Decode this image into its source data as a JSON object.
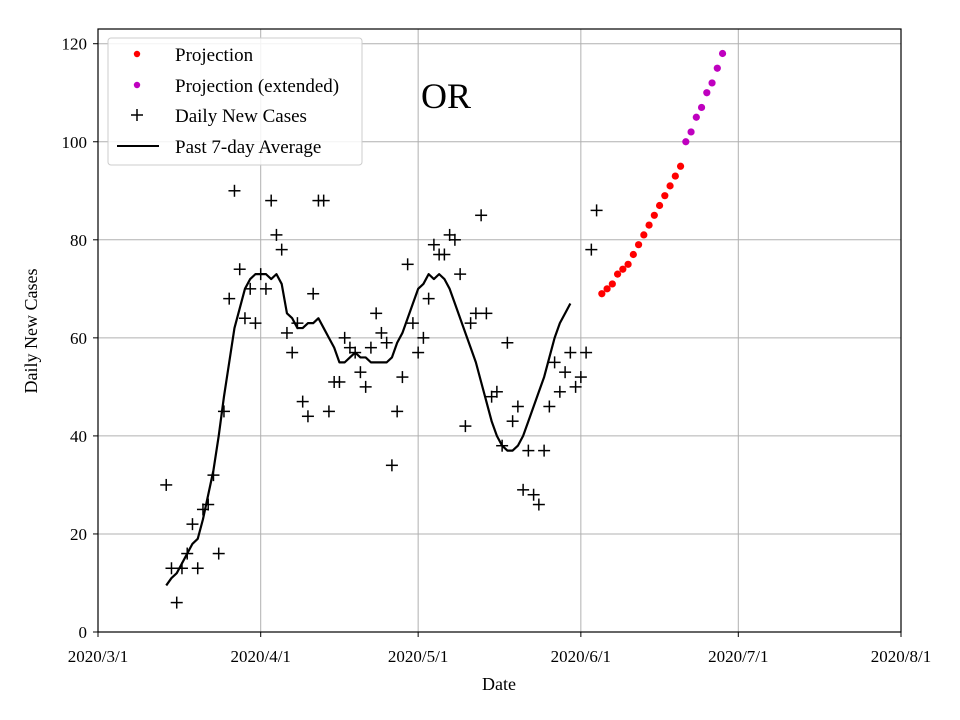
{
  "chart_data": {
    "type": "scatter",
    "title": "OR",
    "xlabel": "Date",
    "ylabel": "Daily New Cases",
    "xlim": [
      "2020-03-01",
      "2020-08-01"
    ],
    "ylim": [
      0,
      123
    ],
    "grid": true,
    "legend_position": "top-left",
    "x_ticks": [
      "2020/3/1",
      "2020/4/1",
      "2020/5/1",
      "2020/6/1",
      "2020/7/1",
      "2020/8/1"
    ],
    "y_ticks": [
      0,
      20,
      40,
      60,
      80,
      100,
      120
    ],
    "legend": [
      {
        "label": "Projection",
        "marker": "dot",
        "color": "#ff0000"
      },
      {
        "label": "Projection (extended)",
        "marker": "dot",
        "color": "#bf00bf"
      },
      {
        "label": "Daily New Cases",
        "marker": "plus",
        "color": "#000000"
      },
      {
        "label": "Past 7-day Average",
        "marker": "line",
        "color": "#000000"
      }
    ],
    "series": [
      {
        "name": "Daily New Cases",
        "style": "plus",
        "color": "#000000",
        "start_date": "2020-03-14",
        "values": [
          30,
          13,
          6,
          13,
          16,
          22,
          13,
          25,
          26,
          32,
          16,
          45,
          68,
          90,
          74,
          64,
          70,
          63,
          73,
          70,
          88,
          81,
          78,
          61,
          57,
          63,
          47,
          44,
          69,
          88,
          88,
          45,
          51,
          51,
          60,
          58,
          57,
          53,
          50,
          58,
          65,
          61,
          59,
          34,
          45,
          52,
          75,
          63,
          57,
          60,
          68,
          79,
          77,
          77,
          81,
          80,
          73,
          42,
          63,
          65,
          85,
          65,
          48,
          49,
          38,
          59,
          43,
          46,
          29,
          37,
          28,
          26,
          37,
          46,
          55,
          49,
          53,
          57,
          50,
          52,
          57,
          78,
          86
        ]
      },
      {
        "name": "Past 7-day Average",
        "style": "line",
        "color": "#000000",
        "start_date": "2020-03-14",
        "values": [
          9.5,
          11,
          12,
          14,
          16,
          18,
          19,
          23,
          28,
          33,
          40,
          48,
          55,
          62,
          66,
          70,
          72,
          73,
          73,
          73,
          72,
          73,
          71,
          65,
          64,
          62,
          62,
          63,
          63,
          64,
          62,
          60,
          58,
          55,
          55,
          56,
          57,
          56,
          56,
          55,
          55,
          55,
          55,
          56,
          59,
          61,
          64,
          67,
          70,
          71,
          73,
          72,
          73,
          72,
          70,
          67,
          64,
          61,
          58,
          55,
          51,
          47,
          43,
          40,
          38,
          37,
          37,
          38,
          40,
          43,
          46,
          49,
          52,
          56,
          60,
          63,
          65,
          67
        ]
      },
      {
        "name": "Projection",
        "style": "dot",
        "color": "#ff0000",
        "start_date": "2020-06-05",
        "values": [
          69,
          70,
          71,
          73,
          74,
          75,
          77,
          79,
          81,
          83,
          85,
          87,
          89,
          91,
          93,
          95
        ]
      },
      {
        "name": "Projection (extended)",
        "style": "dot",
        "color": "#bf00bf",
        "start_date": "2020-06-21",
        "values": [
          100,
          102,
          105,
          107,
          110,
          112,
          115,
          118
        ]
      }
    ]
  }
}
